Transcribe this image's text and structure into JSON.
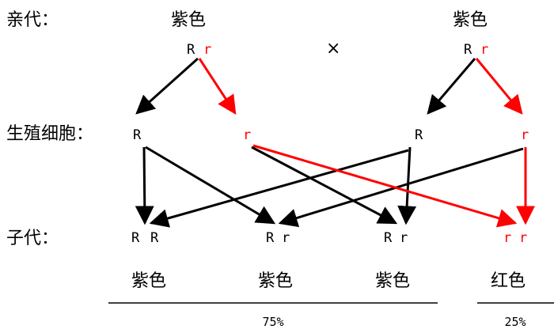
{
  "labels": {
    "parents": "亲代：",
    "gametes": "生殖细胞：",
    "offspring": "子代："
  },
  "cross_symbol": "×",
  "parents": [
    {
      "phenotype": "紫色",
      "allele1": "R",
      "allele2": "r"
    },
    {
      "phenotype": "紫色",
      "allele1": "R",
      "allele2": "r"
    }
  ],
  "gametes": [
    "R",
    "r",
    "R",
    "r"
  ],
  "offspring": [
    {
      "allele1": "R",
      "allele2": "R",
      "phenotype": "紫色"
    },
    {
      "allele1": "R",
      "allele2": "r",
      "phenotype": "紫色"
    },
    {
      "allele1": "R",
      "allele2": "r",
      "phenotype": "紫色"
    },
    {
      "allele1": "r",
      "allele2": "r",
      "phenotype": "红色"
    }
  ],
  "ratios": {
    "dominant": "75%",
    "recessive": "25%"
  },
  "colors": {
    "dominant": "#000000",
    "recessive": "#ff0000"
  }
}
